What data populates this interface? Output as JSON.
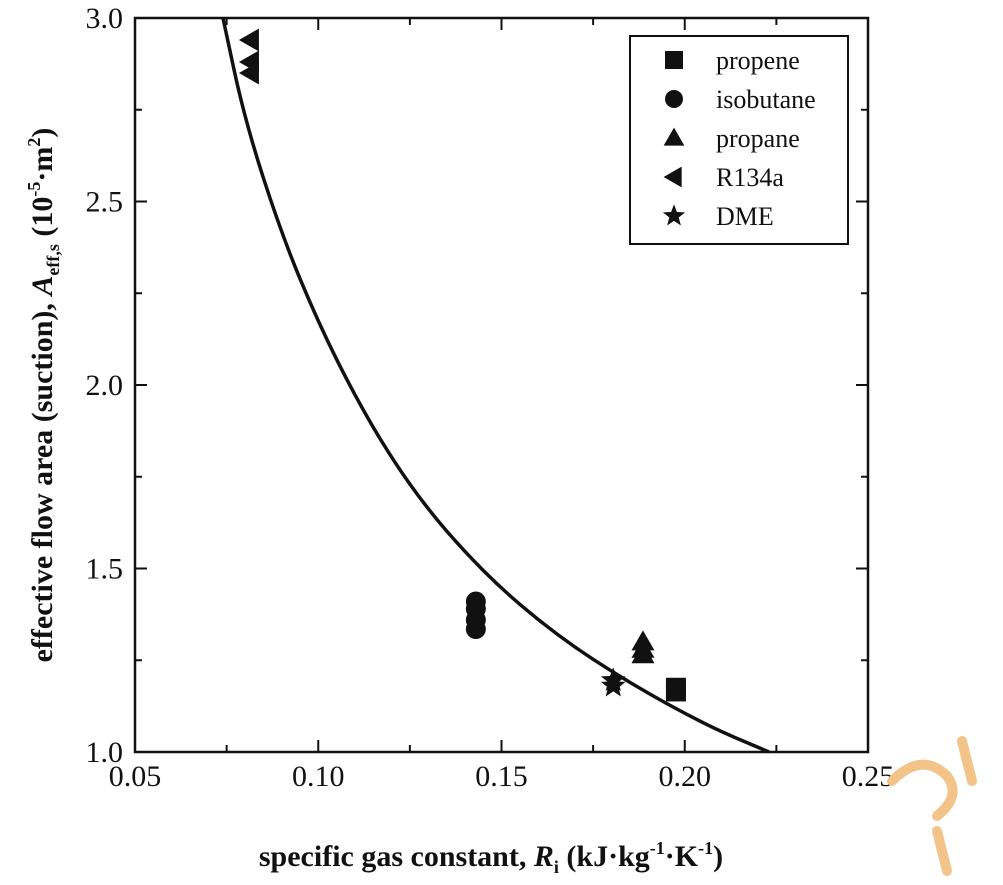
{
  "chart_data": {
    "type": "scatter",
    "xlabel": {
      "prefix": "specific gas constant, ",
      "var": "R",
      "sub": "i",
      "units_open": " (kJ·kg",
      "sup1": "-1",
      "mid": "·K",
      "sup2": "-1",
      "close": ")"
    },
    "ylabel": {
      "prefix": "effective flow area (suction), ",
      "var": "A",
      "sub": "eff,s",
      "units_open": "  (10",
      "sup1": "-5",
      "mid": "·m",
      "sup2": "2",
      "close": ")"
    },
    "xlim": [
      0.05,
      0.25
    ],
    "ylim": [
      1.0,
      3.0
    ],
    "xticks": [
      "0.05",
      "0.10",
      "0.15",
      "0.20",
      "0.25"
    ],
    "yticks": [
      "1.0",
      "1.5",
      "2.0",
      "2.5",
      "3.0"
    ],
    "grid": false,
    "legend_position": "top-right",
    "series": [
      {
        "name": "propene",
        "marker": "square",
        "points": [
          [
            0.1976,
            1.165
          ],
          [
            0.1976,
            1.175
          ]
        ]
      },
      {
        "name": "isobutane",
        "marker": "circle",
        "points": [
          [
            0.143,
            1.335
          ],
          [
            0.143,
            1.36
          ],
          [
            0.143,
            1.39
          ],
          [
            0.143,
            1.41
          ]
        ]
      },
      {
        "name": "propane",
        "marker": "triangle-up",
        "points": [
          [
            0.1886,
            1.265
          ],
          [
            0.1886,
            1.28
          ],
          [
            0.1886,
            1.3
          ]
        ]
      },
      {
        "name": "R134a",
        "marker": "triangle-left",
        "points": [
          [
            0.0815,
            2.85
          ],
          [
            0.0815,
            2.88
          ],
          [
            0.0815,
            2.94
          ]
        ]
      },
      {
        "name": "DME",
        "marker": "star",
        "points": [
          [
            0.1805,
            1.18
          ],
          [
            0.1805,
            1.195
          ]
        ]
      }
    ],
    "fit_curve": {
      "x": [
        0.074,
        0.08,
        0.09,
        0.1,
        0.11,
        0.12,
        0.13,
        0.14,
        0.15,
        0.16,
        0.17,
        0.18,
        0.19,
        0.2,
        0.21,
        0.223
      ],
      "y": [
        3.0,
        2.72,
        2.41,
        2.17,
        1.97,
        1.8,
        1.66,
        1.545,
        1.445,
        1.36,
        1.285,
        1.22,
        1.16,
        1.105,
        1.055,
        1.0
      ]
    }
  }
}
